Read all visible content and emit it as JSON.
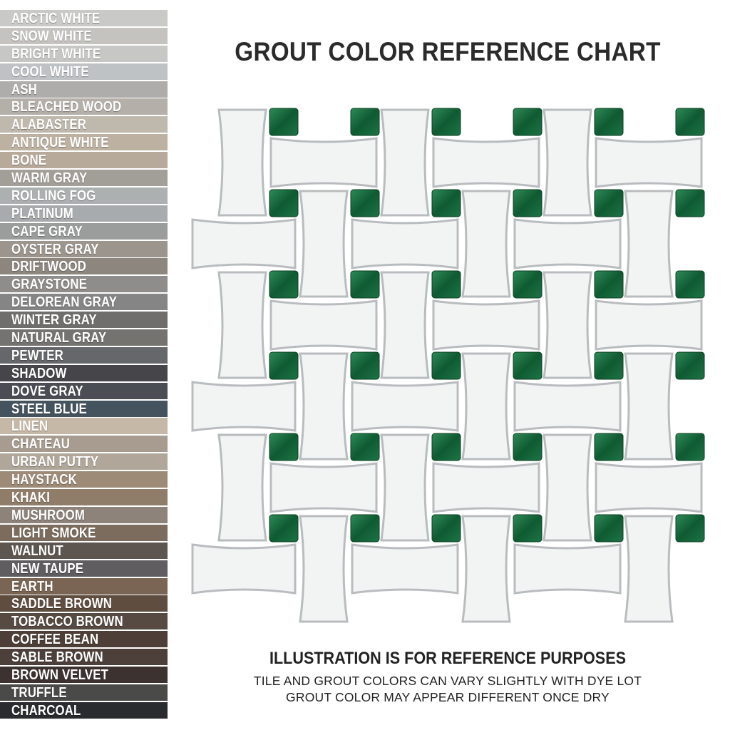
{
  "title": "GROUT COLOR REFERENCE CHART",
  "swatches": [
    {
      "name": "ARCTIC WHITE",
      "color": "#c9c9c7"
    },
    {
      "name": "SNOW WHITE",
      "color": "#c4c3c0"
    },
    {
      "name": "BRIGHT WHITE",
      "color": "#c7c7c6"
    },
    {
      "name": "COOL WHITE",
      "color": "#bec2c4"
    },
    {
      "name": "ASH",
      "color": "#aeadab"
    },
    {
      "name": "BLEACHED WOOD",
      "color": "#b4b0a9"
    },
    {
      "name": "ALABASTER",
      "color": "#bfb8ad"
    },
    {
      "name": "ANTIQUE WHITE",
      "color": "#bdb1a2"
    },
    {
      "name": "BONE",
      "color": "#b8aa9b"
    },
    {
      "name": "WARM GRAY",
      "color": "#a29e98"
    },
    {
      "name": "ROLLING FOG",
      "color": "#adb0b1"
    },
    {
      "name": "PLATINUM",
      "color": "#a8abad"
    },
    {
      "name": "CAPE GRAY",
      "color": "#9b9c9c"
    },
    {
      "name": "OYSTER GRAY",
      "color": "#9c958d"
    },
    {
      "name": "DRIFTWOOD",
      "color": "#8c867f"
    },
    {
      "name": "GRAYSTONE",
      "color": "#8f8d8b"
    },
    {
      "name": "DELOREAN GRAY",
      "color": "#858585"
    },
    {
      "name": "WINTER GRAY",
      "color": "#6f6e6c"
    },
    {
      "name": "NATURAL GRAY",
      "color": "#75736f"
    },
    {
      "name": "PEWTER",
      "color": "#66676a"
    },
    {
      "name": "SHADOW",
      "color": "#46464a"
    },
    {
      "name": "DOVE GRAY",
      "color": "#4a4d54"
    },
    {
      "name": "STEEL BLUE",
      "color": "#44535d"
    },
    {
      "name": "LINEN",
      "color": "#c6b8a6"
    },
    {
      "name": "CHATEAU",
      "color": "#a79c8f"
    },
    {
      "name": "URBAN PUTTY",
      "color": "#b0a79a"
    },
    {
      "name": "HAYSTACK",
      "color": "#9d8b78"
    },
    {
      "name": "KHAKI",
      "color": "#8f7c69"
    },
    {
      "name": "MUSHROOM",
      "color": "#8d837b"
    },
    {
      "name": "LIGHT SMOKE",
      "color": "#7c6c5e"
    },
    {
      "name": "WALNUT",
      "color": "#5d5650"
    },
    {
      "name": "NEW TAUPE",
      "color": "#5f5d5f"
    },
    {
      "name": "EARTH",
      "color": "#7a6554"
    },
    {
      "name": "SADDLE BROWN",
      "color": "#5f4d40"
    },
    {
      "name": "TOBACCO BROWN",
      "color": "#574a42"
    },
    {
      "name": "COFFEE BEAN",
      "color": "#4d3f37"
    },
    {
      "name": "SABLE BROWN",
      "color": "#4d403b"
    },
    {
      "name": "BROWN VELVET",
      "color": "#3c3230"
    },
    {
      "name": "TRUFFLE",
      "color": "#4a4a48"
    },
    {
      "name": "CHARCOAL",
      "color": "#2a2b2e"
    }
  ],
  "mosaic": {
    "tile_color": "#f2f4f4",
    "accent_color": "#17683d",
    "grout_color": "#b9bcbe"
  },
  "note": {
    "heading": "ILLUSTRATION IS FOR REFERENCE PURPOSES",
    "line1": "TILE AND GROUT COLORS CAN VARY SLIGHTLY WITH DYE LOT",
    "line2": "GROUT COLOR MAY APPEAR DIFFERENT ONCE DRY"
  }
}
